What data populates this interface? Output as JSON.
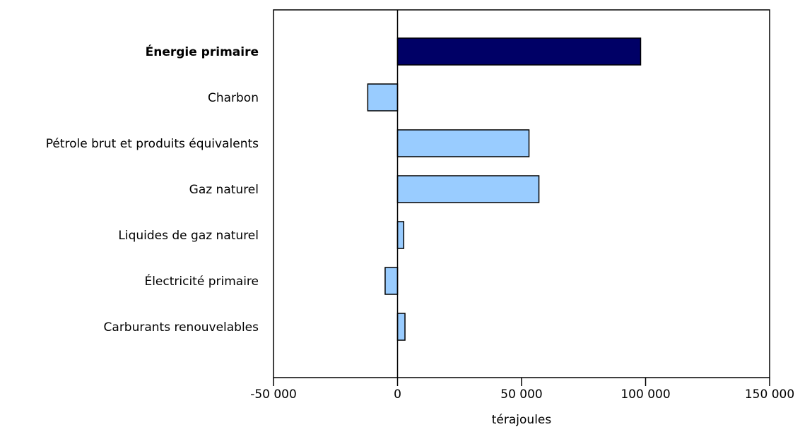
{
  "chart_data": {
    "type": "bar",
    "orientation": "horizontal",
    "categories": [
      "Énergie primaire",
      "Charbon",
      "Pétrole brut et produits équivalents",
      "Gaz naturel",
      "Liquides de gaz naturel",
      "Électricité primaire",
      "Carburants renouvelables"
    ],
    "emphasized_category": "Énergie primaire",
    "values": [
      98000,
      -12000,
      53000,
      57000,
      2500,
      -5000,
      3000
    ],
    "xlabel": "térajoules",
    "ylabel": "",
    "title": "",
    "xlim": [
      -50000,
      150000
    ],
    "xticks": [
      -50000,
      0,
      50000,
      100000,
      150000
    ],
    "xtick_labels": [
      "-50 000",
      "0",
      "50 000",
      "100 000",
      "150 000"
    ],
    "grid": false,
    "legend": "none",
    "colors": {
      "total_bar": "#000066",
      "component_bar": "#99ccff",
      "bar_stroke": "#000000",
      "axis": "#000000"
    }
  }
}
